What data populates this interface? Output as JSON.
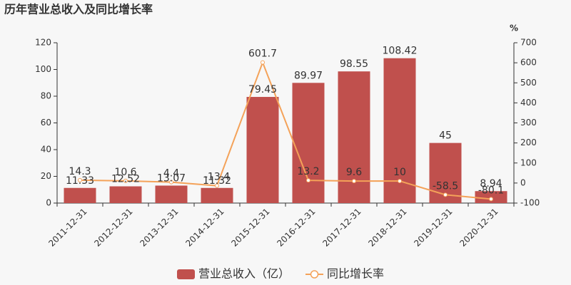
{
  "chart_data": {
    "type": "bar",
    "title": "历年营业总收入及同比增长率",
    "y2label": "%",
    "categories": [
      "2011-12-31",
      "2012-12-31",
      "2013-12-31",
      "2014-12-31",
      "2015-12-31",
      "2016-12-31",
      "2017-12-31",
      "2018-12-31",
      "2019-12-31",
      "2020-12-31"
    ],
    "series": [
      {
        "name": "营业总收入（亿）",
        "type": "bar",
        "color": "#c0504d",
        "label_color": "#c0504d",
        "values": [
          11.33,
          12.52,
          13.07,
          11.32,
          79.45,
          89.97,
          98.55,
          108.42,
          45,
          8.94
        ]
      },
      {
        "name": "同比增长率",
        "type": "line",
        "axis": "y2",
        "color": "#f4a259",
        "label_color": "#f4a259",
        "values": [
          14.3,
          10.6,
          4.4,
          -13.4,
          601.7,
          13.2,
          9.6,
          10,
          -58.5,
          -80.1
        ]
      }
    ],
    "ylim": [
      0,
      120
    ],
    "yticks": [
      0,
      20,
      40,
      60,
      80,
      100,
      120
    ],
    "y2lim": [
      -100,
      700
    ],
    "y2ticks": [
      -100,
      0,
      100,
      200,
      300,
      400,
      500,
      600,
      700
    ],
    "grid": false
  }
}
